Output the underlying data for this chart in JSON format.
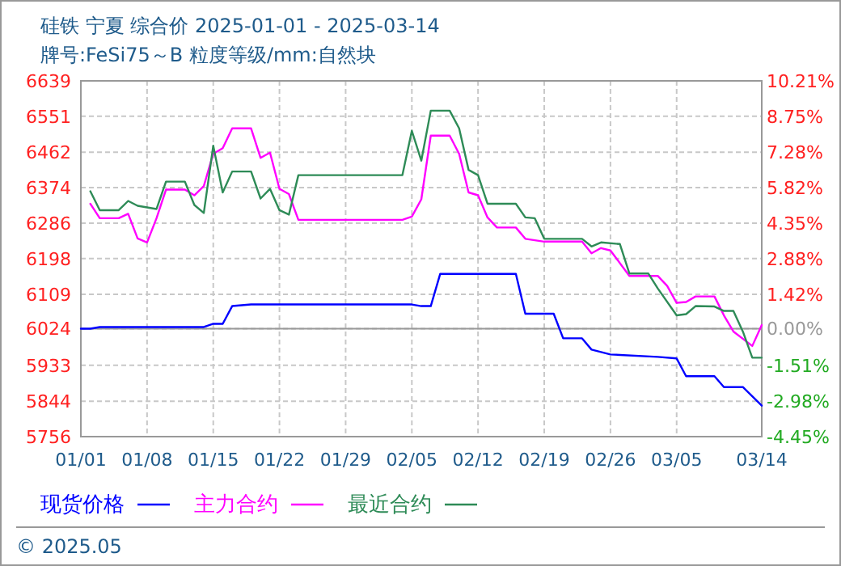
{
  "chart_data": {
    "type": "line",
    "title": "硅铁 宁夏 综合价 2025-01-01 - 2025-03-14",
    "subtitle": "牌号:FeSi75～B 粒度等级/mm:自然块",
    "xlim": [
      "2025-01-01",
      "2025-03-14"
    ],
    "xticks": [
      {
        "value": "2025-01-01",
        "label": "01/01"
      },
      {
        "value": "2025-01-08",
        "label": "01/08"
      },
      {
        "value": "2025-01-15",
        "label": "01/15"
      },
      {
        "value": "2025-01-22",
        "label": "01/22"
      },
      {
        "value": "2025-01-29",
        "label": "01/29"
      },
      {
        "value": "2025-02-05",
        "label": "02/05"
      },
      {
        "value": "2025-02-12",
        "label": "02/12"
      },
      {
        "value": "2025-02-19",
        "label": "02/19"
      },
      {
        "value": "2025-02-26",
        "label": "02/26"
      },
      {
        "value": "2025-03-05",
        "label": "03/05"
      },
      {
        "value": "2025-03-14",
        "label": "03/14"
      }
    ],
    "ylim": [
      5756,
      6639
    ],
    "yticks": [
      5756,
      5844,
      5933,
      6024,
      6109,
      6198,
      6286,
      6374,
      6462,
      6551,
      6639
    ],
    "y2lim": [
      -4.45,
      10.21
    ],
    "y2ticks": [
      {
        "value": -4.45,
        "label": "-4.45%"
      },
      {
        "value": -2.98,
        "label": "-2.98%"
      },
      {
        "value": -1.51,
        "label": "-1.51%"
      },
      {
        "value": 0,
        "label": "0.00%"
      },
      {
        "value": 1.42,
        "label": "1.42%"
      },
      {
        "value": 2.88,
        "label": "2.88%"
      },
      {
        "value": 4.35,
        "label": "4.35%"
      },
      {
        "value": 5.82,
        "label": "5.82%"
      },
      {
        "value": 7.28,
        "label": "7.28%"
      },
      {
        "value": 8.75,
        "label": "8.75%"
      },
      {
        "value": 10.21,
        "label": "10.21%"
      }
    ],
    "grid": true,
    "legend": "bottom",
    "ref_lines": [
      {
        "axis": "y2",
        "value": 0,
        "color": "#999999"
      }
    ],
    "series": [
      {
        "name": "现货价格",
        "color": "#0000ff",
        "x": [
          "2025-01-01",
          "2025-01-02",
          "2025-01-03",
          "2025-01-14",
          "2025-01-15",
          "2025-01-16",
          "2025-01-17",
          "2025-01-19",
          "2025-02-05",
          "2025-02-06",
          "2025-02-07",
          "2025-02-08",
          "2025-02-16",
          "2025-02-17",
          "2025-02-20",
          "2025-02-21",
          "2025-02-23",
          "2025-02-24",
          "2025-02-26",
          "2025-03-03",
          "2025-03-05",
          "2025-03-06",
          "2025-03-09",
          "2025-03-10",
          "2025-03-12",
          "2025-03-14"
        ],
        "values": [
          6024,
          6024,
          6028,
          6028,
          6036,
          6036,
          6080,
          6084,
          6084,
          6080,
          6080,
          6160,
          6160,
          6061,
          6061,
          6000,
          6000,
          5972,
          5960,
          5954,
          5950,
          5906,
          5906,
          5879,
          5879,
          5833
        ]
      },
      {
        "name": "主力合约",
        "color": "#ff00ff",
        "x": [
          "2025-01-02",
          "2025-01-03",
          "2025-01-05",
          "2025-01-06",
          "2025-01-07",
          "2025-01-08",
          "2025-01-09",
          "2025-01-10",
          "2025-01-12",
          "2025-01-13",
          "2025-01-14",
          "2025-01-15",
          "2025-01-16",
          "2025-01-17",
          "2025-01-19",
          "2025-01-20",
          "2025-01-21",
          "2025-01-22",
          "2025-01-23",
          "2025-01-24",
          "2025-02-04",
          "2025-02-05",
          "2025-02-06",
          "2025-02-07",
          "2025-02-09",
          "2025-02-10",
          "2025-02-11",
          "2025-02-12",
          "2025-02-13",
          "2025-02-14",
          "2025-02-16",
          "2025-02-17",
          "2025-02-19",
          "2025-02-23",
          "2025-02-24",
          "2025-02-25",
          "2025-02-26",
          "2025-02-28",
          "2025-03-03",
          "2025-03-04",
          "2025-03-05",
          "2025-03-06",
          "2025-03-07",
          "2025-03-09",
          "2025-03-10",
          "2025-03-11",
          "2025-03-13",
          "2025-03-14"
        ],
        "values": [
          6334,
          6298,
          6298,
          6309,
          6248,
          6238,
          6298,
          6369,
          6369,
          6355,
          6378,
          6458,
          6472,
          6521,
          6521,
          6448,
          6461,
          6371,
          6358,
          6294,
          6294,
          6302,
          6345,
          6503,
          6503,
          6458,
          6362,
          6355,
          6300,
          6275,
          6275,
          6247,
          6240,
          6240,
          6211,
          6224,
          6218,
          6155,
          6155,
          6130,
          6088,
          6090,
          6104,
          6104,
          6057,
          6017,
          5981,
          6033
        ]
      },
      {
        "name": "最近合约",
        "color": "#2e8b57",
        "x": [
          "2025-01-02",
          "2025-01-03",
          "2025-01-05",
          "2025-01-06",
          "2025-01-07",
          "2025-01-08",
          "2025-01-09",
          "2025-01-10",
          "2025-01-12",
          "2025-01-13",
          "2025-01-14",
          "2025-01-15",
          "2025-01-16",
          "2025-01-17",
          "2025-01-19",
          "2025-01-20",
          "2025-01-21",
          "2025-01-22",
          "2025-01-23",
          "2025-01-24",
          "2025-02-04",
          "2025-02-05",
          "2025-02-06",
          "2025-02-07",
          "2025-02-09",
          "2025-02-10",
          "2025-02-11",
          "2025-02-12",
          "2025-02-13",
          "2025-02-16",
          "2025-02-17",
          "2025-02-18",
          "2025-02-19",
          "2025-02-23",
          "2025-02-24",
          "2025-02-25",
          "2025-02-27",
          "2025-02-28",
          "2025-03-02",
          "2025-03-03",
          "2025-03-05",
          "2025-03-06",
          "2025-03-07",
          "2025-03-09",
          "2025-03-10",
          "2025-03-11",
          "2025-03-12",
          "2025-03-13",
          "2025-03-14"
        ],
        "values": [
          6365,
          6318,
          6318,
          6341,
          6329,
          6325,
          6321,
          6389,
          6389,
          6331,
          6311,
          6478,
          6362,
          6414,
          6414,
          6347,
          6371,
          6318,
          6307,
          6405,
          6405,
          6515,
          6441,
          6565,
          6565,
          6521,
          6418,
          6405,
          6334,
          6334,
          6300,
          6298,
          6247,
          6247,
          6228,
          6238,
          6234,
          6161,
          6161,
          6124,
          6057,
          6060,
          6080,
          6079,
          6068,
          6068,
          6017,
          5952,
          5952
        ]
      }
    ],
    "annotations": [
      "© 2025.05"
    ]
  }
}
